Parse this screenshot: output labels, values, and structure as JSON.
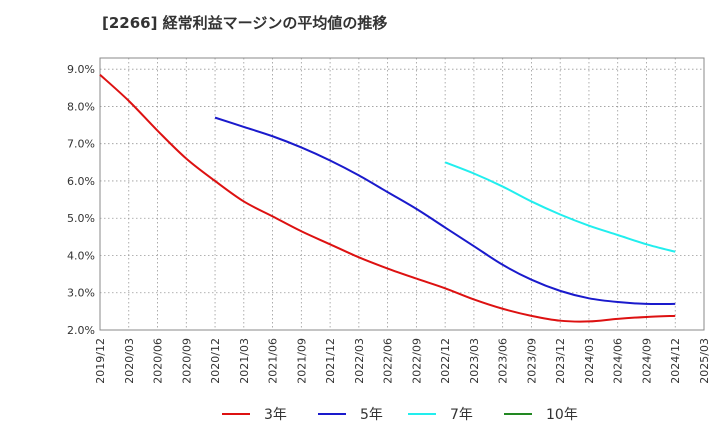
{
  "chart_data": {
    "type": "line",
    "title": "[2266]  経常利益マージンの平均値の推移",
    "xlabel": "",
    "ylabel": "",
    "x_ticks": [
      "2019/12",
      "2020/03",
      "2020/06",
      "2020/09",
      "2020/12",
      "2021/03",
      "2021/06",
      "2021/09",
      "2021/12",
      "2022/03",
      "2022/06",
      "2022/09",
      "2022/12",
      "2023/03",
      "2023/06",
      "2023/09",
      "2023/12",
      "2024/03",
      "2024/06",
      "2024/09",
      "2024/12",
      "2025/03"
    ],
    "y_ticks": [
      "2.0%",
      "3.0%",
      "4.0%",
      "5.0%",
      "6.0%",
      "7.0%",
      "8.0%",
      "9.0%"
    ],
    "ylim": [
      2.0,
      9.3
    ],
    "grid": true,
    "legend_position": "bottom",
    "series": [
      {
        "name": "3年",
        "color": "#dd1111",
        "x": [
          "2019/12",
          "2020/03",
          "2020/06",
          "2020/09",
          "2020/12",
          "2021/03",
          "2021/06",
          "2021/09",
          "2021/12",
          "2022/03",
          "2022/06",
          "2022/09",
          "2022/12",
          "2023/03",
          "2023/06",
          "2023/09",
          "2023/12",
          "2024/03",
          "2024/06",
          "2024/09",
          "2024/12"
        ],
        "values": [
          8.85,
          8.15,
          7.35,
          6.6,
          6.0,
          5.45,
          5.05,
          4.65,
          4.3,
          3.95,
          3.65,
          3.38,
          3.12,
          2.82,
          2.57,
          2.38,
          2.25,
          2.23,
          2.3,
          2.35,
          2.38
        ]
      },
      {
        "name": "5年",
        "color": "#1a1acc",
        "x": [
          "2020/12",
          "2021/03",
          "2021/06",
          "2021/09",
          "2021/12",
          "2022/03",
          "2022/06",
          "2022/09",
          "2022/12",
          "2023/03",
          "2023/06",
          "2023/09",
          "2023/12",
          "2024/03",
          "2024/06",
          "2024/09",
          "2024/12"
        ],
        "values": [
          7.7,
          7.45,
          7.2,
          6.9,
          6.55,
          6.15,
          5.7,
          5.25,
          4.75,
          4.25,
          3.75,
          3.35,
          3.05,
          2.85,
          2.75,
          2.7,
          2.7
        ]
      },
      {
        "name": "7年",
        "color": "#22eeee",
        "x": [
          "2022/12",
          "2023/03",
          "2023/06",
          "2023/09",
          "2023/12",
          "2024/03",
          "2024/06",
          "2024/09",
          "2024/12"
        ],
        "values": [
          6.5,
          6.2,
          5.85,
          5.45,
          5.1,
          4.8,
          4.55,
          4.3,
          4.1
        ]
      },
      {
        "name": "10年",
        "color": "#228822",
        "x": [],
        "values": []
      }
    ]
  }
}
